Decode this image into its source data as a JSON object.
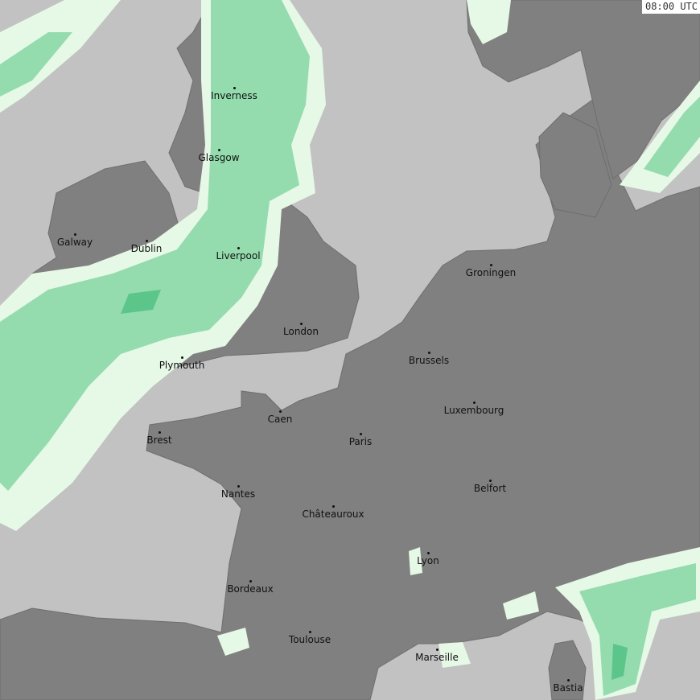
{
  "timestamp": "08:00 UTC",
  "colors": {
    "sea": "#c2c2c2",
    "land": "#808080",
    "border": "#6a6a6a",
    "rain_light": "#e6f8e6",
    "rain_moderate": "#94dcae",
    "rain_heavy": "#5cc68a"
  },
  "cities": [
    {
      "name": "Inverness"
    },
    {
      "name": "Glasgow"
    },
    {
      "name": "Galway"
    },
    {
      "name": "Dublin"
    },
    {
      "name": "Liverpool"
    },
    {
      "name": "London"
    },
    {
      "name": "Groningen"
    },
    {
      "name": "Brussels"
    },
    {
      "name": "Plymouth"
    },
    {
      "name": "Luxembourg"
    },
    {
      "name": "Caen"
    },
    {
      "name": "Brest"
    },
    {
      "name": "Paris"
    },
    {
      "name": "Nantes"
    },
    {
      "name": "Belfort"
    },
    {
      "name": "Châteauroux"
    },
    {
      "name": "Lyon"
    },
    {
      "name": "Bordeaux"
    },
    {
      "name": "Toulouse"
    },
    {
      "name": "Marseille"
    },
    {
      "name": "Bastia"
    }
  ]
}
